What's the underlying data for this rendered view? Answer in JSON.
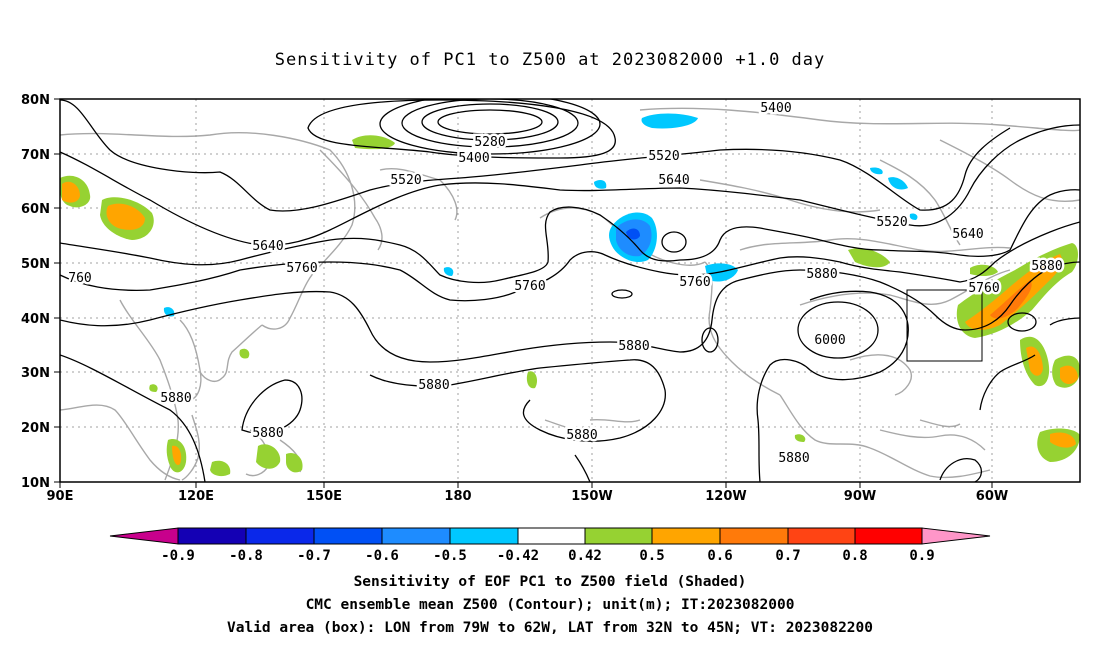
{
  "title": "Sensitivity of PC1 to Z500 at 2023082000 +1.0 day",
  "lat_labels": [
    "80N",
    "70N",
    "60N",
    "50N",
    "40N",
    "30N",
    "20N",
    "10N"
  ],
  "lon_labels": [
    "90E",
    "120E",
    "150E",
    "180",
    "150W",
    "120W",
    "90W",
    "60W"
  ],
  "contour_labels": [
    "5400",
    "5280",
    "5400",
    "5520",
    "5520",
    "5640",
    "5520",
    "5640",
    "5640",
    "5760",
    "760",
    "5760",
    "5760",
    "5880",
    "5760",
    "5880",
    "6000",
    "5880",
    "5880",
    "5880",
    "5880",
    "5880",
    "5880"
  ],
  "colorbar": {
    "labels": [
      "-0.9",
      "-0.8",
      "-0.7",
      "-0.6",
      "-0.5",
      "-0.42",
      "0.42",
      "0.5",
      "0.6",
      "0.7",
      "0.8",
      "0.9"
    ],
    "colors": [
      "#c8008c",
      "#1400b4",
      "#0a28ea",
      "#0050f5",
      "#1e8cff",
      "#00c8ff",
      "#ffffff",
      "#96d232",
      "#ffa500",
      "#ff7a0a",
      "#ff4414",
      "#ff0000",
      "#ff96c8"
    ]
  },
  "captions": {
    "line1": "Sensitivity of EOF PC1 to Z500 field (Shaded)",
    "line2": "CMC ensemble mean Z500 (Contour); unit(m); IT:2023082000",
    "line3": "Valid area (box): LON from 79W to 62W, LAT from 32N to 45N; VT: 2023082200"
  }
}
